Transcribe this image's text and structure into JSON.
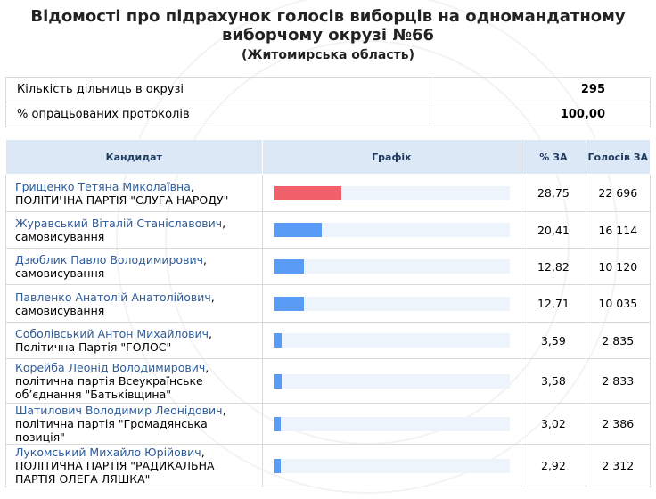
{
  "header": {
    "title": "Відомості про підрахунок голосів виборців на одномандатному виборчому окрузі №66",
    "region": "(Житомирська область)"
  },
  "summary": [
    {
      "label": "Кількість дільниць в окрузі",
      "value": "295"
    },
    {
      "label": "% опрацьованих протоколів",
      "value": "100,00"
    }
  ],
  "table": {
    "headers": {
      "candidate": "Кандидат",
      "chart": "Графік",
      "pct": "% ЗА",
      "votes": "Голосів ЗА"
    },
    "rows": [
      {
        "name": "Грищенко Тетяна Миколаївна",
        "party": "ПОЛІТИЧНА ПАРТІЯ \"СЛУГА НАРОДУ\"",
        "pct": "28,75",
        "votes": "22 696",
        "share": 28.75,
        "lead": true
      },
      {
        "name": "Журавський Віталій Станіславович",
        "party": "самовисування",
        "pct": "20,41",
        "votes": "16 114",
        "share": 20.41
      },
      {
        "name": "Дзюблик Павло Володимирович",
        "party": "самовисування",
        "pct": "12,82",
        "votes": "10 120",
        "share": 12.82
      },
      {
        "name": "Павленко Анатолій Анатолійович",
        "party": "самовисування",
        "pct": "12,71",
        "votes": "10 035",
        "share": 12.71
      },
      {
        "name": "Соболівський Антон Михайлович",
        "party": "Політична Партія \"ГОЛОС\"",
        "pct": "3,59",
        "votes": "2 835",
        "share": 3.59
      },
      {
        "name": "Корейба Леонід Володимирович",
        "party": "політична партія Всеукраїнське об’єднання \"Батьківщина\"",
        "pct": "3,58",
        "votes": "2 833",
        "share": 3.58
      },
      {
        "name": "Шатилович Володимир Леонідович",
        "party": "політична партія \"Громадянська позиція\"",
        "pct": "3,02",
        "votes": "2 386",
        "share": 3.02
      },
      {
        "name": "Лукомський Михайло Юрійович",
        "party": "ПОЛІТИЧНА ПАРТІЯ \"РАДИКАЛЬНА ПАРТІЯ ОЛЕГА ЛЯШКА\"",
        "pct": "2,92",
        "votes": "2 312",
        "share": 2.92
      }
    ]
  },
  "colors": {
    "lead_bar": "#f2606b",
    "bar": "#5a9cf5",
    "bar_track": "#eef4fc",
    "header_bg": "#dde8f7",
    "link": "#2e5c9a"
  }
}
